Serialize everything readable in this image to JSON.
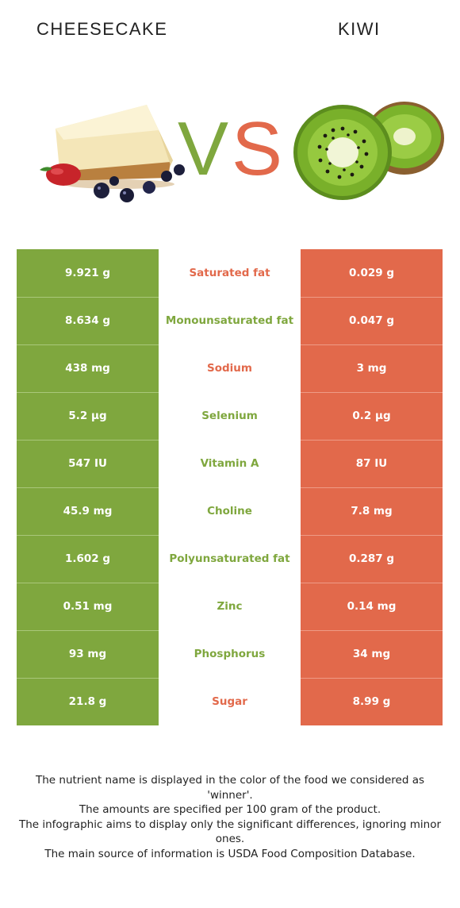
{
  "header": {
    "left_food": "CHEESECAKE",
    "right_food": "KIWI",
    "vs_label": "VS"
  },
  "colors": {
    "left_winner": "#7fa73e",
    "right_winner": "#e2694b"
  },
  "rows": [
    {
      "left": "9.921 g",
      "nutrient": "Saturated fat",
      "right": "0.029 g",
      "winner": "right"
    },
    {
      "left": "8.634 g",
      "nutrient": "Monounsaturated fat",
      "right": "0.047 g",
      "winner": "left"
    },
    {
      "left": "438 mg",
      "nutrient": "Sodium",
      "right": "3 mg",
      "winner": "right"
    },
    {
      "left": "5.2 µg",
      "nutrient": "Selenium",
      "right": "0.2 µg",
      "winner": "left"
    },
    {
      "left": "547 IU",
      "nutrient": "Vitamin A",
      "right": "87 IU",
      "winner": "left"
    },
    {
      "left": "45.9 mg",
      "nutrient": "Choline",
      "right": "7.8 mg",
      "winner": "left"
    },
    {
      "left": "1.602 g",
      "nutrient": "Polyunsaturated fat",
      "right": "0.287 g",
      "winner": "left"
    },
    {
      "left": "0.51 mg",
      "nutrient": "Zinc",
      "right": "0.14 mg",
      "winner": "left"
    },
    {
      "left": "93 mg",
      "nutrient": "Phosphorus",
      "right": "34 mg",
      "winner": "left"
    },
    {
      "left": "21.8 g",
      "nutrient": "Sugar",
      "right": "8.99 g",
      "winner": "right"
    }
  ],
  "footnote": [
    "The nutrient name is displayed in the color of the food we considered as 'winner'.",
    "The amounts are specified per 100 gram of the product.",
    "The infographic aims to display only the significant differences, ignoring minor ones.",
    "The main source of information is USDA Food Composition Database."
  ]
}
